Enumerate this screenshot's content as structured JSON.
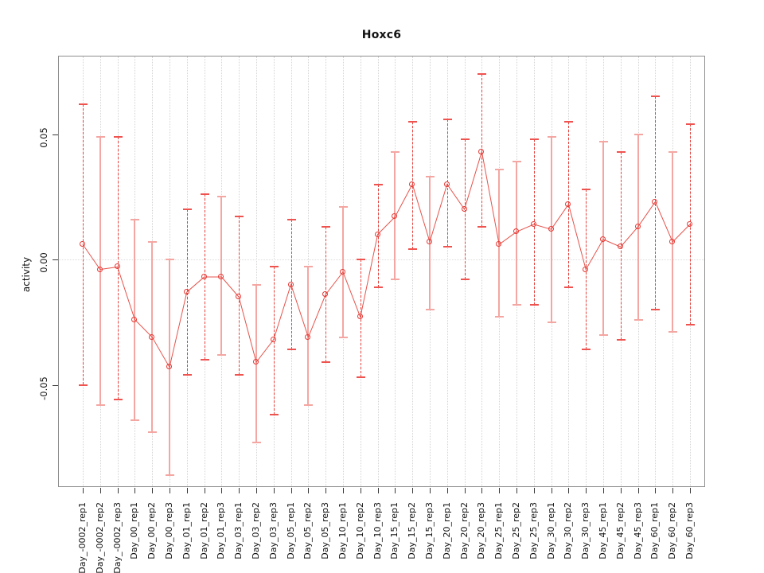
{
  "title": "Hoxc6",
  "ylabel": "activity",
  "chart_data": {
    "type": "line",
    "subtype": "points-with-error-bars",
    "title": "Hoxc6",
    "xlabel": "",
    "ylabel": "activity",
    "ylim": [
      -0.092,
      0.08
    ],
    "yticks": [
      0.05,
      0.0,
      -0.05
    ],
    "ytick_labels": [
      "0.05",
      "0.00",
      "-0.05"
    ],
    "grid": "vertical dotted gridline per category; dotted horizontal line at y=0; legend none",
    "categories": [
      "Day_-0002_rep1",
      "Day_-0002_rep2",
      "Day_-0002_rep3",
      "Day_00_rep1",
      "Day_00_rep2",
      "Day_00_rep3",
      "Day_01_rep1",
      "Day_01_rep2",
      "Day_01_rep3",
      "Day_03_rep1",
      "Day_03_rep2",
      "Day_03_rep3",
      "Day_05_rep1",
      "Day_05_rep2",
      "Day_05_rep3",
      "Day_10_rep1",
      "Day_10_rep2",
      "Day_10_rep3",
      "Day_15_rep1",
      "Day_15_rep2",
      "Day_15_rep3",
      "Day_20_rep1",
      "Day_20_rep2",
      "Day_20_rep3",
      "Day_25_rep1",
      "Day_25_rep2",
      "Day_25_rep3",
      "Day_30_rep1",
      "Day_30_rep2",
      "Day_30_rep3",
      "Day_45_rep1",
      "Day_45_rep2",
      "Day_45_rep3",
      "Day_60_rep1",
      "Day_60_rep2",
      "Day_60_rep3"
    ],
    "series": [
      {
        "name": "activity",
        "marker": "open-circle",
        "values": [
          0.006,
          -0.004,
          -0.003,
          -0.024,
          -0.031,
          -0.043,
          -0.013,
          -0.007,
          -0.007,
          -0.015,
          -0.041,
          -0.032,
          -0.01,
          -0.031,
          -0.014,
          -0.005,
          -0.023,
          0.01,
          0.017,
          0.03,
          0.007,
          0.03,
          0.02,
          0.043,
          0.006,
          0.011,
          0.014,
          0.012,
          0.022,
          -0.004,
          0.008,
          0.005,
          0.013,
          0.023,
          0.007,
          0.014
        ],
        "error_high": [
          0.062,
          0.049,
          0.049,
          0.016,
          0.007,
          0.0,
          0.02,
          0.026,
          0.025,
          0.017,
          -0.01,
          -0.003,
          0.016,
          -0.003,
          0.013,
          0.021,
          0.0,
          0.03,
          0.043,
          0.055,
          0.033,
          0.056,
          0.048,
          0.074,
          0.036,
          0.039,
          0.048,
          0.049,
          0.055,
          0.028,
          0.047,
          0.043,
          0.05,
          0.065,
          0.043,
          0.054
        ],
        "error_low": [
          -0.05,
          -0.058,
          -0.056,
          -0.064,
          -0.069,
          -0.086,
          -0.046,
          -0.04,
          -0.038,
          -0.046,
          -0.073,
          -0.062,
          -0.036,
          -0.058,
          -0.041,
          -0.031,
          -0.047,
          -0.011,
          -0.008,
          0.004,
          -0.02,
          0.005,
          -0.008,
          0.013,
          -0.023,
          -0.018,
          -0.018,
          -0.025,
          -0.011,
          -0.036,
          -0.03,
          -0.032,
          -0.024,
          -0.02,
          -0.029,
          -0.026
        ],
        "bar_styles": [
          "dashed",
          "solid",
          "dashed",
          "solid",
          "solid",
          "solid",
          "dashed",
          "dashed",
          "solid",
          "dashed",
          "solid",
          "dashed",
          "dashed",
          "solid",
          "dashed",
          "solid",
          "dashed",
          "dashed",
          "solid",
          "dashed",
          "solid",
          "dashed",
          "dashed",
          "dashed",
          "solid",
          "solid",
          "dashed",
          "solid",
          "dashed",
          "dashed",
          "solid",
          "dashed",
          "solid",
          "dashed",
          "solid",
          "dashed"
        ]
      }
    ],
    "colors": {
      "point": "#e53935",
      "line": "#e5534b",
      "dashed_bar": "#e8413c",
      "solid_bar": "#f4a6a2",
      "grid": "#d4d4d4",
      "zero_line": "#dcdcdc",
      "axis_box": "#8f8f8f",
      "tick": "#3a3a3a",
      "text": "#111111"
    },
    "legend_position": "none"
  }
}
